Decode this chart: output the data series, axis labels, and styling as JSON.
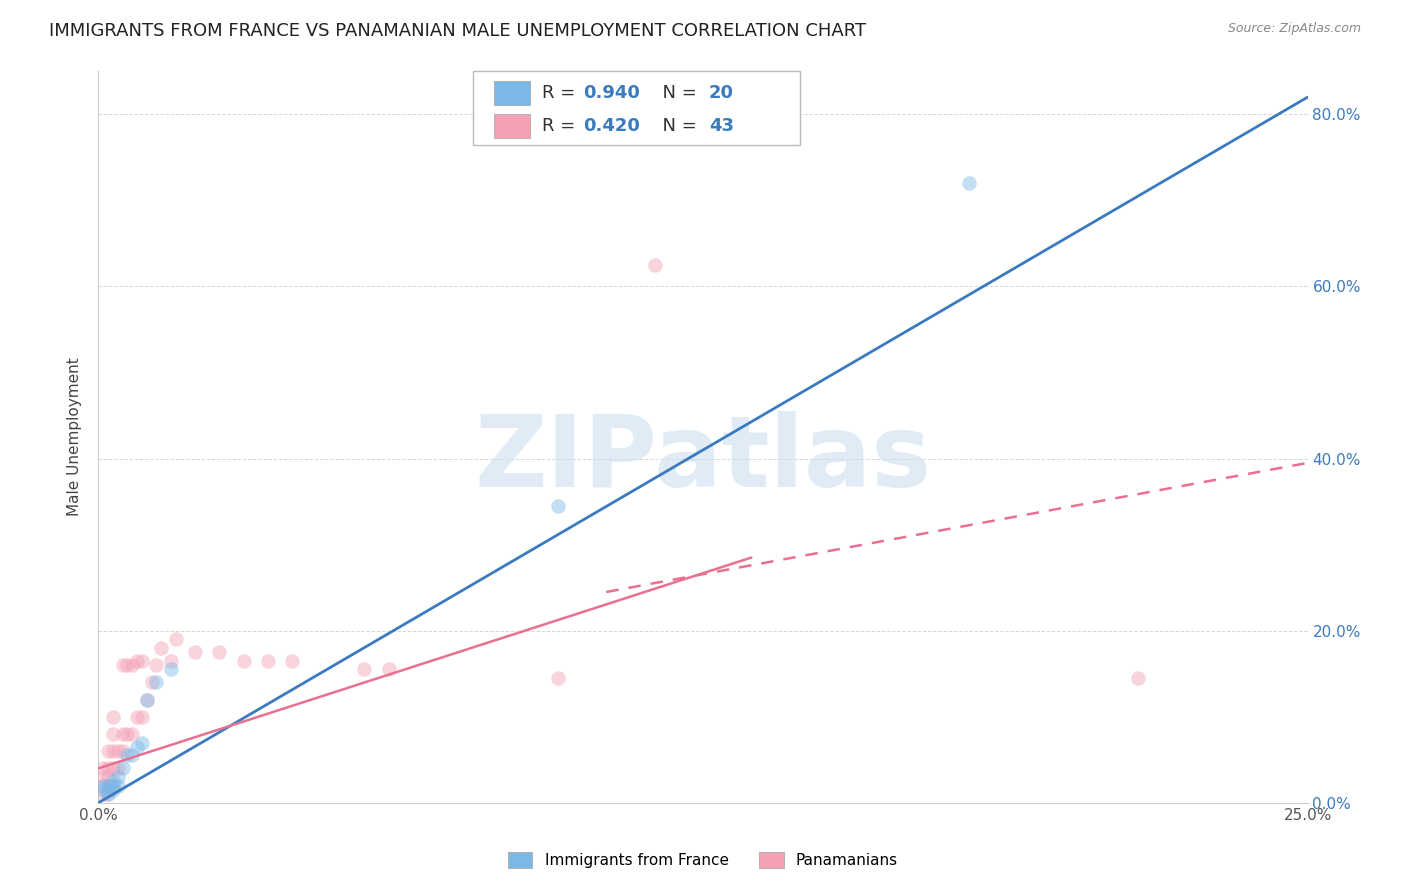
{
  "title": "IMMIGRANTS FROM FRANCE VS PANAMANIAN MALE UNEMPLOYMENT CORRELATION CHART",
  "source": "Source: ZipAtlas.com",
  "ylabel": "Male Unemployment",
  "xlim": [
    0.0,
    0.25
  ],
  "ylim": [
    0.0,
    0.85
  ],
  "right_yticks": [
    0.0,
    0.2,
    0.4,
    0.6,
    0.8
  ],
  "right_yticklabels": [
    "0.0%",
    "20.0%",
    "40.0%",
    "60.0%",
    "80.0%"
  ],
  "xtick_positions": [
    0.0,
    0.05,
    0.1,
    0.15,
    0.2,
    0.25
  ],
  "xtick_labels": [
    "0.0%",
    "",
    "",
    "",
    "",
    "25.0%"
  ],
  "legend_labels": [
    "Immigrants from France",
    "Panamanians"
  ],
  "legend_r": [
    "R = 0.940",
    "R = 0.420"
  ],
  "legend_n": [
    "N = 20",
    "N = 43"
  ],
  "blue_color": "#7ab8e8",
  "pink_color": "#f4a0b5",
  "blue_line_color": "#3a7bbf",
  "pink_line_color": "#e87090",
  "blue_scatter_x": [
    0.001,
    0.001,
    0.002,
    0.002,
    0.002,
    0.003,
    0.003,
    0.003,
    0.004,
    0.004,
    0.005,
    0.006,
    0.007,
    0.008,
    0.009,
    0.01,
    0.012,
    0.015,
    0.095,
    0.18
  ],
  "blue_scatter_y": [
    0.015,
    0.02,
    0.01,
    0.015,
    0.02,
    0.015,
    0.02,
    0.025,
    0.02,
    0.03,
    0.04,
    0.055,
    0.055,
    0.065,
    0.07,
    0.12,
    0.14,
    0.155,
    0.345,
    0.72
  ],
  "pink_scatter_x": [
    0.001,
    0.001,
    0.001,
    0.001,
    0.002,
    0.002,
    0.002,
    0.002,
    0.002,
    0.003,
    0.003,
    0.003,
    0.003,
    0.003,
    0.004,
    0.004,
    0.005,
    0.005,
    0.005,
    0.006,
    0.006,
    0.007,
    0.007,
    0.008,
    0.008,
    0.009,
    0.009,
    0.01,
    0.011,
    0.012,
    0.013,
    0.015,
    0.016,
    0.02,
    0.025,
    0.03,
    0.035,
    0.04,
    0.055,
    0.06,
    0.095,
    0.115,
    0.215
  ],
  "pink_scatter_y": [
    0.01,
    0.02,
    0.03,
    0.04,
    0.01,
    0.02,
    0.03,
    0.04,
    0.06,
    0.02,
    0.04,
    0.06,
    0.08,
    0.1,
    0.04,
    0.06,
    0.06,
    0.08,
    0.16,
    0.08,
    0.16,
    0.08,
    0.16,
    0.1,
    0.165,
    0.1,
    0.165,
    0.12,
    0.14,
    0.16,
    0.18,
    0.165,
    0.19,
    0.175,
    0.175,
    0.165,
    0.165,
    0.165,
    0.155,
    0.155,
    0.145,
    0.625,
    0.145
  ],
  "blue_line_x": [
    0.0,
    0.25
  ],
  "blue_line_y": [
    0.0,
    0.82
  ],
  "pink_solid_line_x": [
    0.0,
    0.135
  ],
  "pink_solid_line_y": [
    0.04,
    0.285
  ],
  "pink_dash_line_x": [
    0.105,
    0.25
  ],
  "pink_dash_line_y": [
    0.245,
    0.395
  ],
  "watermark": "ZIPatlas",
  "background_color": "#ffffff",
  "grid_color": "#d8d8d8",
  "title_fontsize": 13,
  "label_fontsize": 11,
  "tick_fontsize": 11,
  "scatter_size": 110,
  "scatter_alpha": 0.45
}
